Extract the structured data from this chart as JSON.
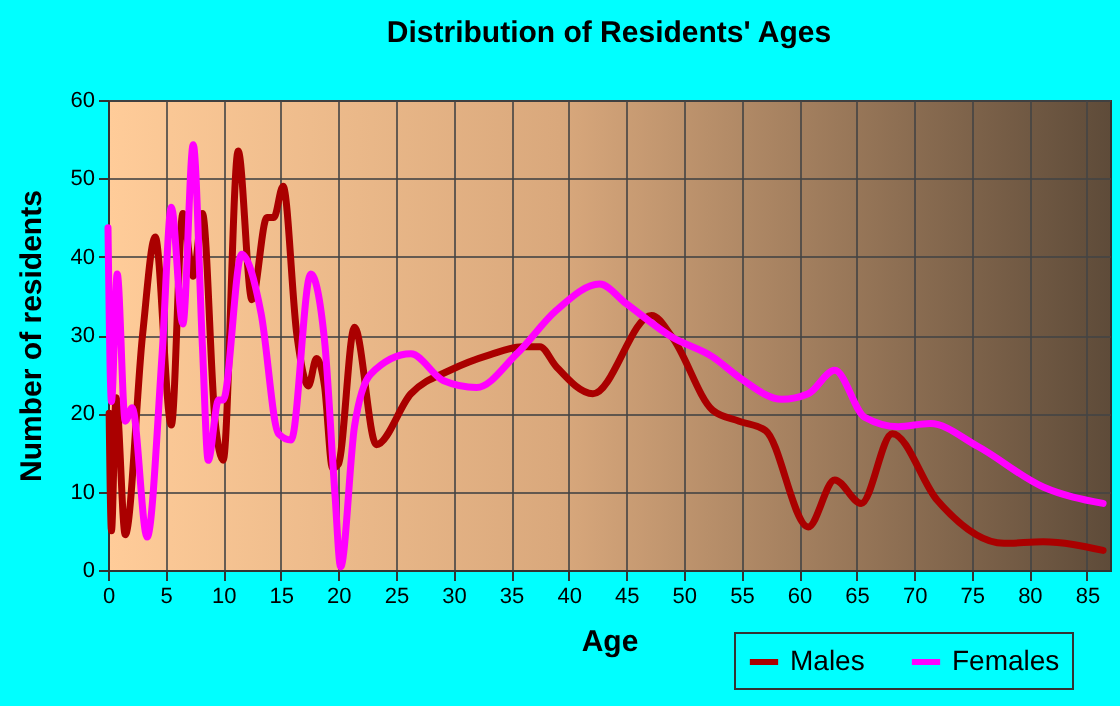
{
  "chart_data": {
    "type": "line",
    "title": "Distribution of Residents' Ages",
    "xlabel": "Age",
    "ylabel": "Number of residents",
    "xlim": [
      0,
      87
    ],
    "xticks": [
      0,
      5,
      10,
      15,
      20,
      25,
      30,
      35,
      40,
      45,
      50,
      55,
      60,
      65,
      70,
      75,
      80,
      85
    ],
    "ylim": [
      0,
      60
    ],
    "yticks": [
      0,
      10,
      20,
      30,
      40,
      50,
      60
    ],
    "grid": true,
    "legend": "bottom right",
    "line_style": "solid",
    "marker": "none",
    "series": [
      {
        "name": "Males",
        "color": "#aa0000",
        "x": [
          0.1,
          0.3,
          0.7,
          1.5,
          3,
          4.1,
          5.5,
          6.5,
          7.4,
          8.2,
          9.3,
          10,
          11.3,
          12.5,
          13.8,
          14.4,
          15.2,
          16.4,
          17.4,
          18.1,
          18.8,
          19.5,
          20,
          21.4,
          23.3,
          26.3,
          29.7,
          33.2,
          36,
          37.5,
          38.9,
          42.1,
          47.2,
          49,
          52.5,
          54.8,
          57.1,
          60.8,
          63.1,
          65.4,
          68.1,
          72,
          77.8,
          81.2,
          86.4
        ],
        "values": [
          20,
          5,
          22,
          4.5,
          30,
          42.5,
          18.5,
          45.5,
          37.5,
          45.5,
          19,
          14,
          53.5,
          34.5,
          45,
          45,
          49,
          30,
          23.5,
          27,
          23.5,
          13,
          13.5,
          31,
          16,
          22.5,
          25.5,
          27.5,
          28.5,
          28.5,
          26,
          22.5,
          32.5,
          29.7,
          20.4,
          19,
          17.8,
          5.5,
          11.5,
          8.5,
          17.4,
          8.9,
          3.4,
          3.6,
          2.5
        ]
      },
      {
        "name": "Females",
        "color": "#ff00ff",
        "x": [
          0,
          0.3,
          0.8,
          1.5,
          2.1,
          3.4,
          4.7,
          5.5,
          6.5,
          7.4,
          8.2,
          8.7,
          9.6,
          10,
          11.6,
          13.3,
          14.8,
          15.9,
          17.6,
          18.8,
          19.7,
          20.2,
          21.4,
          22.8,
          26.3,
          29.1,
          32,
          35.5,
          38.9,
          42.7,
          45,
          49,
          52.5,
          54.8,
          58.5,
          60.8,
          63.1,
          65.7,
          68.6,
          71.4,
          75.5,
          81.2,
          86.4
        ],
        "values": [
          43.7,
          21.5,
          37.8,
          19,
          20.7,
          4.2,
          27.6,
          46.3,
          31.4,
          54.3,
          28.5,
          14,
          21.7,
          21.7,
          40.3,
          32.7,
          17.4,
          16.6,
          37.8,
          29.3,
          9.8,
          0.4,
          18.3,
          25,
          27.6,
          24.2,
          23.3,
          27.6,
          33.1,
          36.5,
          34,
          29.7,
          27.2,
          24.6,
          21.8,
          22.5,
          25.5,
          19.5,
          18.3,
          18.7,
          15.8,
          10.6,
          8.5
        ]
      }
    ]
  }
}
